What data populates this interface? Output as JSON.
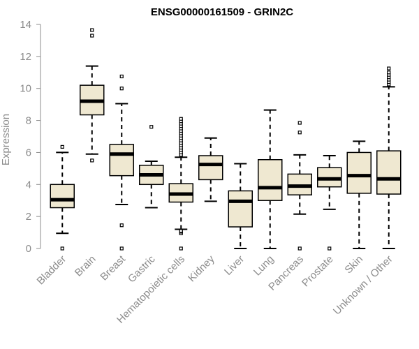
{
  "chart_data": {
    "type": "boxplot",
    "title": "ENSG00000161509 - GRIN2C",
    "ylabel": "Expression",
    "xlabel": "",
    "ylim": [
      0,
      14
    ],
    "yticks": [
      "0",
      "2",
      "4",
      "6",
      "8",
      "10",
      "12",
      "14"
    ],
    "grid": false,
    "colors": {
      "box_fill": "#efe8d1",
      "box_stroke": "#000000",
      "axis": "#8c8c8c"
    },
    "categories": [
      "Bladder",
      "Brain",
      "Breast",
      "Gastric",
      "Hematopoietic cells",
      "Kidney",
      "Liver",
      "Lung",
      "Pancreas",
      "Prostate",
      "Skin",
      "Unknown / Other"
    ],
    "boxes": [
      {
        "label": "Bladder",
        "whisker_low": 0.95,
        "q1": 2.55,
        "median": 3.05,
        "q3": 4.0,
        "whisker_high": 6.0,
        "outliers": [
          0.0,
          6.35
        ]
      },
      {
        "label": "Brain",
        "whisker_low": 5.9,
        "q1": 8.35,
        "median": 9.2,
        "q3": 10.2,
        "whisker_high": 11.4,
        "outliers": [
          5.5,
          13.3,
          13.65
        ]
      },
      {
        "label": "Breast",
        "whisker_low": 2.75,
        "q1": 4.55,
        "median": 5.9,
        "q3": 6.5,
        "whisker_high": 9.05,
        "outliers": [
          0.0,
          1.45,
          10.0,
          10.75
        ]
      },
      {
        "label": "Gastric",
        "whisker_low": 2.55,
        "q1": 4.0,
        "median": 4.6,
        "q3": 5.2,
        "whisker_high": 5.45,
        "outliers": [
          7.6
        ]
      },
      {
        "label": "Hematopoietic cells",
        "whisker_low": 1.2,
        "q1": 2.9,
        "median": 3.4,
        "q3": 4.05,
        "whisker_high": 5.7,
        "outliers": [
          0.0,
          0.95,
          1.05,
          1.1,
          5.85,
          6.0,
          6.15,
          6.3,
          6.45,
          6.6,
          6.75,
          6.9,
          7.05,
          7.2,
          7.35,
          7.5,
          7.65,
          7.8,
          7.95,
          8.1
        ]
      },
      {
        "label": "Kidney",
        "whisker_low": 2.95,
        "q1": 4.3,
        "median": 5.25,
        "q3": 5.8,
        "whisker_high": 6.9,
        "outliers": []
      },
      {
        "label": "Liver",
        "whisker_low": 0.0,
        "q1": 1.35,
        "median": 2.95,
        "q3": 3.6,
        "whisker_high": 5.3,
        "outliers": []
      },
      {
        "label": "Lung",
        "whisker_low": 0.0,
        "q1": 3.0,
        "median": 3.8,
        "q3": 5.55,
        "whisker_high": 8.65,
        "outliers": []
      },
      {
        "label": "Pancreas",
        "whisker_low": 2.15,
        "q1": 3.35,
        "median": 3.9,
        "q3": 4.65,
        "whisker_high": 5.85,
        "outliers": [
          0.0,
          7.25,
          7.85
        ]
      },
      {
        "label": "Prostate",
        "whisker_low": 2.45,
        "q1": 3.85,
        "median": 4.35,
        "q3": 5.05,
        "whisker_high": 5.8,
        "outliers": [
          0.0
        ]
      },
      {
        "label": "Skin",
        "whisker_low": 0.0,
        "q1": 3.45,
        "median": 4.55,
        "q3": 6.0,
        "whisker_high": 6.7,
        "outliers": []
      },
      {
        "label": "Unknown / Other",
        "whisker_low": 0.0,
        "q1": 3.4,
        "median": 4.35,
        "q3": 6.1,
        "whisker_high": 10.1,
        "outliers": [
          10.25,
          10.4,
          10.55,
          10.7,
          10.85,
          11.0,
          11.25
        ]
      }
    ]
  }
}
